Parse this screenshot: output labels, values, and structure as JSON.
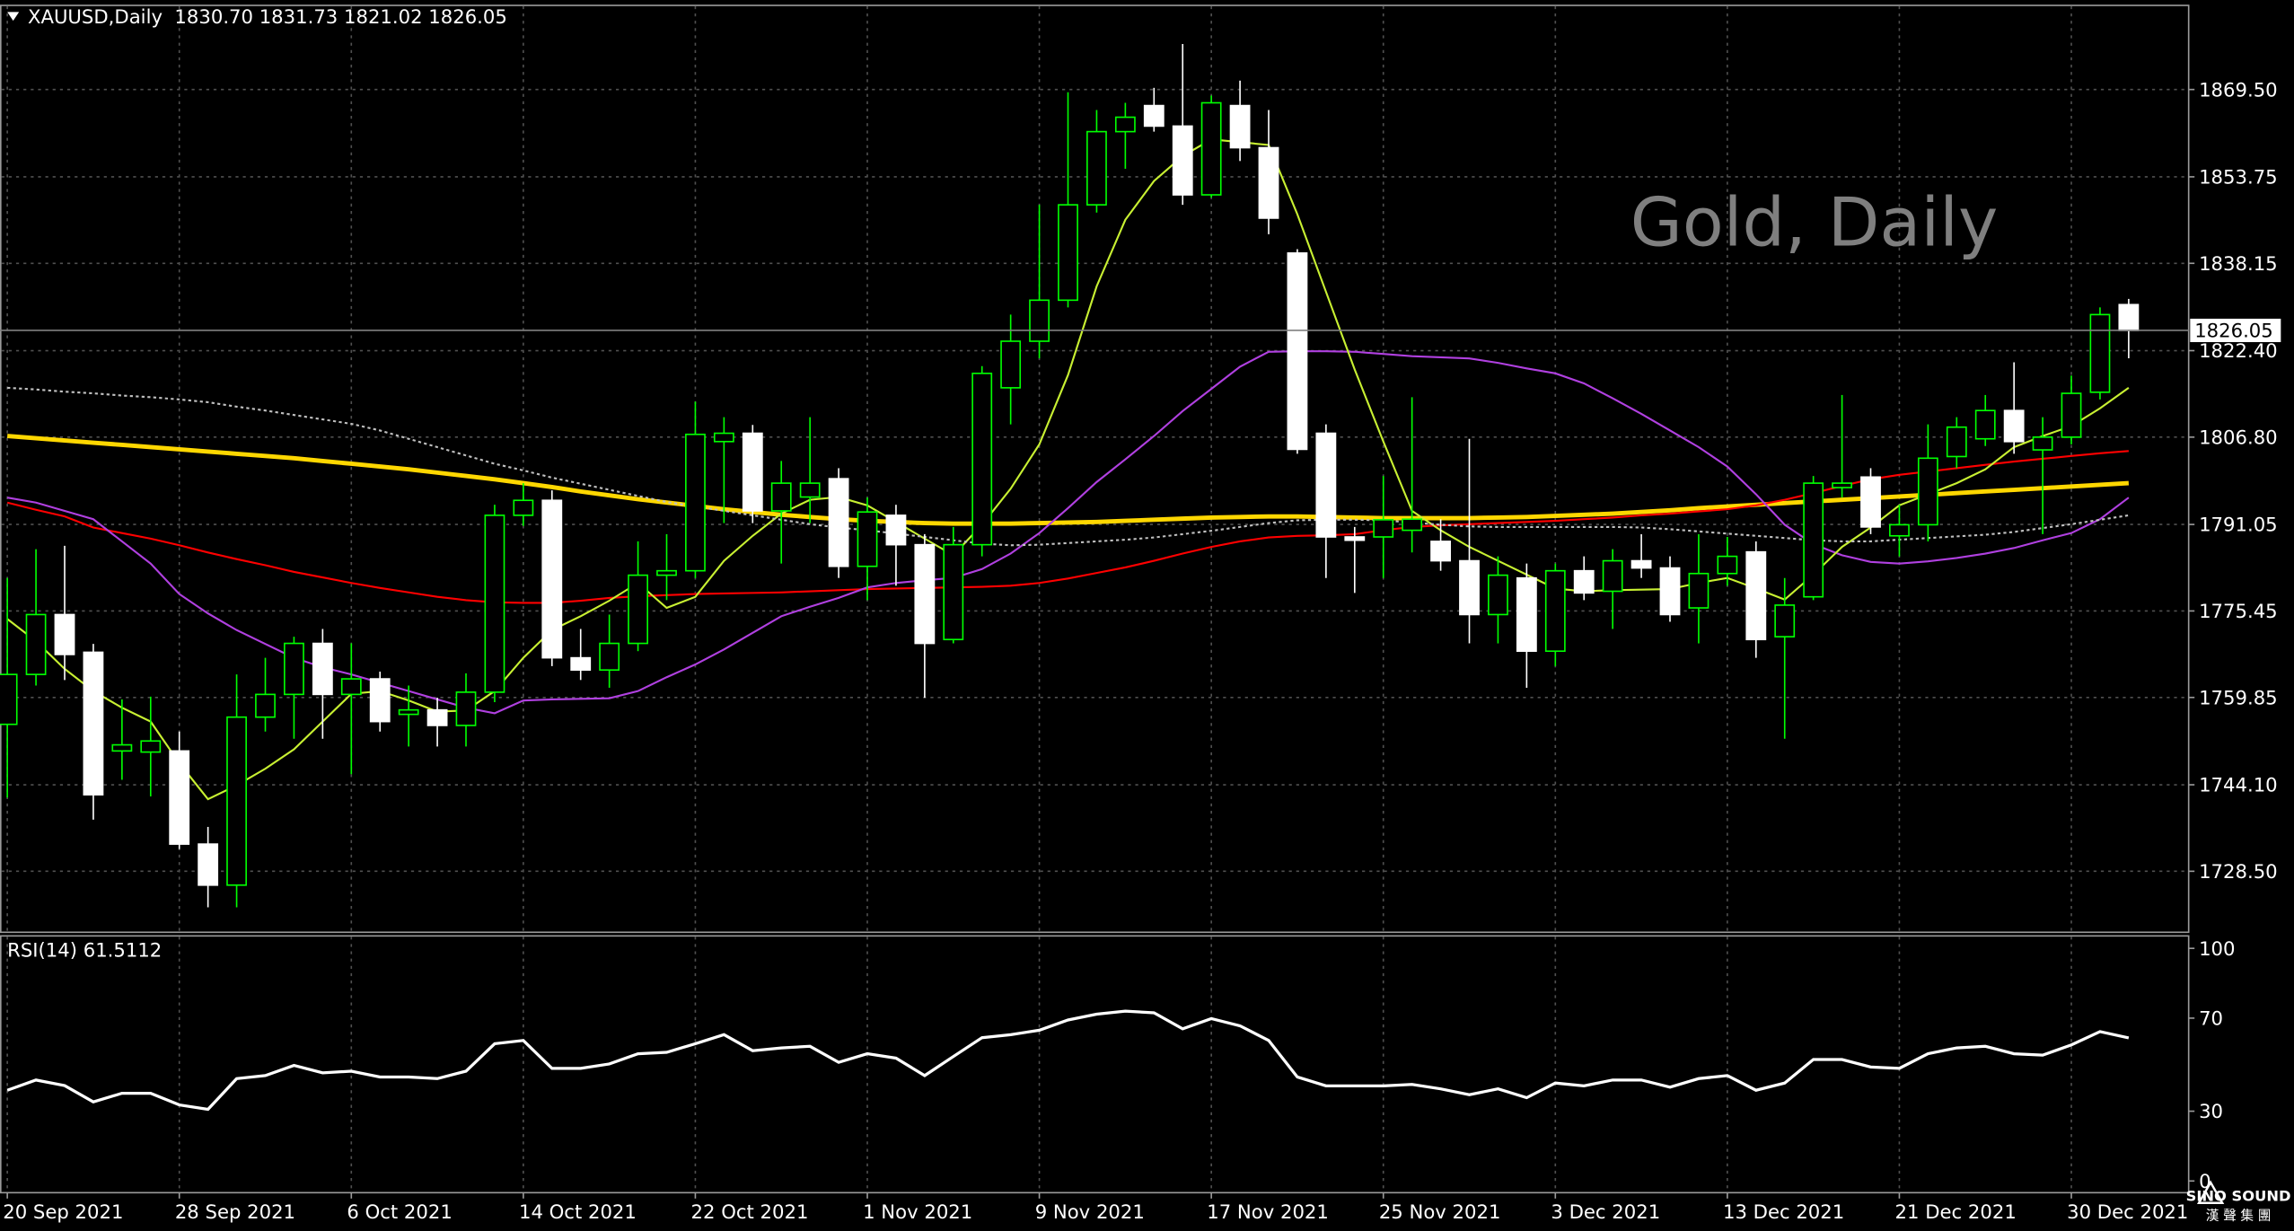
{
  "header": "XAUUSD,Daily  1830.70 1831.73 1821.02 1826.05",
  "watermark": "Gold, Daily",
  "logo": {
    "title": "SINO SOUND",
    "subtitle": "漢 聲 集 團"
  },
  "chart_data": [
    {
      "type": "candlestick",
      "categories": [
        "20 Sep 2021",
        null,
        null,
        null,
        null,
        null,
        "28 Sep 2021",
        null,
        null,
        null,
        null,
        null,
        "6 Oct 2021",
        null,
        null,
        null,
        null,
        null,
        "14 Oct 2021",
        null,
        null,
        null,
        null,
        null,
        "22 Oct 2021",
        null,
        null,
        null,
        null,
        null,
        "1 Nov 2021",
        null,
        null,
        null,
        null,
        null,
        "9 Nov 2021",
        null,
        null,
        null,
        null,
        null,
        "17 Nov 2021",
        null,
        null,
        null,
        null,
        null,
        "25 Nov 2021",
        null,
        null,
        null,
        null,
        null,
        "3 Dec 2021",
        null,
        null,
        null,
        null,
        null,
        "13 Dec 2021",
        null,
        null,
        null,
        null,
        null,
        "21 Dec 2021",
        null,
        null,
        null,
        null,
        null,
        "30 Dec 2021",
        null,
        null
      ],
      "open": [
        1755,
        1764,
        1774.8,
        1768,
        1750.2,
        1750,
        1750.2,
        1733.4,
        1726,
        1756.3,
        1760.4,
        1769.6,
        1760.4,
        1763.2,
        1756.8,
        1757.6,
        1754.8,
        1760.8,
        1792.7,
        1795.4,
        1767,
        1764.8,
        1769.6,
        1781.9,
        1782.7,
        1806,
        1807.5,
        1793.5,
        1796,
        1799.3,
        1783.5,
        1792.7,
        1787.4,
        1770.3,
        1787.4,
        1815.7,
        1824.1,
        1831.5,
        1848.7,
        1861.9,
        1866.6,
        1862.9,
        1850.5,
        1866.6,
        1859,
        1840,
        1807.5,
        1788.8,
        1788.8,
        1790,
        1788,
        1784.5,
        1774.8,
        1781.4,
        1768.2,
        1782.7,
        1779,
        1784.5,
        1783.2,
        1776,
        1782.2,
        1786.1,
        1770.8,
        1778,
        1797.7,
        1799.6,
        1789,
        1791,
        1803.3,
        1806.5,
        1811.6,
        1804.5,
        1806.8,
        1814.9,
        1830.7
      ],
      "high": [
        1781.4,
        1786.6,
        1787.2,
        1769.5,
        1759.5,
        1760,
        1753.7,
        1736.5,
        1764,
        1767,
        1770.8,
        1772.2,
        1769.6,
        1764.5,
        1762,
        1759.8,
        1764.2,
        1794.6,
        1798.5,
        1797.2,
        1772.2,
        1774.8,
        1788,
        1789.3,
        1813.2,
        1810.4,
        1809,
        1802.5,
        1810.4,
        1801.2,
        1795.9,
        1794.6,
        1789.3,
        1790.6,
        1819.6,
        1828.9,
        1848.7,
        1869,
        1865.8,
        1867.1,
        1869.8,
        1877.7,
        1868.4,
        1871.1,
        1865.8,
        1840.7,
        1809.1,
        1790.6,
        1799.8,
        1814,
        1792,
        1806.5,
        1785.3,
        1784,
        1784,
        1785.3,
        1786.6,
        1789.3,
        1785.3,
        1789.3,
        1788.8,
        1788,
        1781.4,
        1799.8,
        1814.4,
        1801.2,
        1794.6,
        1809.1,
        1810.4,
        1814.4,
        1820.3,
        1810.4,
        1817.9,
        1830.2,
        1831.73
      ],
      "low": [
        1741.8,
        1762,
        1763,
        1737.8,
        1745,
        1742,
        1732.5,
        1722,
        1722,
        1753.7,
        1752.4,
        1752.4,
        1746,
        1753.7,
        1751,
        1751,
        1751,
        1759,
        1790.8,
        1765.5,
        1763,
        1761.6,
        1768.2,
        1777.4,
        1781.4,
        1791.3,
        1791.3,
        1784,
        1791.3,
        1781.4,
        1777.4,
        1780,
        1759.8,
        1769.6,
        1785.3,
        1809.1,
        1821,
        1830.2,
        1847.3,
        1855.2,
        1861.9,
        1848.7,
        1850,
        1856.6,
        1843.4,
        1803.8,
        1781.4,
        1778.7,
        1781.4,
        1786,
        1782.7,
        1769.6,
        1769.6,
        1761.6,
        1765.5,
        1777.4,
        1772.2,
        1781.4,
        1773.5,
        1769.6,
        1780,
        1767,
        1752.4,
        1777.4,
        1795.9,
        1789.3,
        1785.3,
        1788,
        1801.2,
        1805.2,
        1803.8,
        1789.3,
        1805.5,
        1813.6,
        1821.02
      ],
      "close": [
        1764,
        1774.8,
        1767.6,
        1742.3,
        1751.3,
        1752,
        1733.4,
        1726,
        1756.3,
        1760.4,
        1769.6,
        1760.4,
        1763.2,
        1755.5,
        1757.6,
        1754.8,
        1760.8,
        1792.7,
        1795.4,
        1767,
        1764.8,
        1769.6,
        1781.9,
        1782.7,
        1807.3,
        1807.5,
        1793.5,
        1798.5,
        1798.5,
        1783.5,
        1793.3,
        1787.4,
        1769.6,
        1787.4,
        1818.3,
        1824.1,
        1831.5,
        1848.7,
        1861.9,
        1864.5,
        1862.9,
        1850.5,
        1867.1,
        1859,
        1846.3,
        1804.6,
        1788.8,
        1788.2,
        1791.9,
        1792,
        1784.5,
        1774.8,
        1781.9,
        1768.2,
        1782.7,
        1778.7,
        1784.5,
        1783.2,
        1774.8,
        1782.2,
        1785.3,
        1770.3,
        1776.5,
        1798.5,
        1798.5,
        1790.6,
        1791,
        1803,
        1808.6,
        1811.6,
        1806,
        1806.8,
        1814.7,
        1828.9,
        1826.05
      ],
      "up_color": "#00ff00",
      "down_color": "#ffffff",
      "series": [
        {
          "color": "#ffd700",
          "values": [
            1807,
            1806.6,
            1806.2,
            1805.8,
            1805.4,
            1805,
            1804.6,
            1804.2,
            1803.8,
            1803.4,
            1803,
            1802.5,
            1802,
            1801.5,
            1801,
            1800.4,
            1799.8,
            1799.2,
            1798.5,
            1797.8,
            1797,
            1796.3,
            1795.6,
            1795,
            1794.4,
            1793.8,
            1793.3,
            1792.8,
            1792.4,
            1792,
            1791.7,
            1791.5,
            1791.3,
            1791.2,
            1791.2,
            1791.2,
            1791.3,
            1791.4,
            1791.5,
            1791.7,
            1791.9,
            1792.1,
            1792.3,
            1792.4,
            1792.5,
            1792.5,
            1792.4,
            1792.3,
            1792.2,
            1792.2,
            1792.2,
            1792.2,
            1792.3,
            1792.4,
            1792.6,
            1792.8,
            1793,
            1793.3,
            1793.6,
            1794,
            1794.3,
            1794.6,
            1794.9,
            1795.2,
            1795.5,
            1795.8,
            1796.1,
            1796.4,
            1796.7,
            1797,
            1797.3,
            1797.6,
            1797.9,
            1798.2,
            1798.5
          ]
        },
        {
          "color": "#ff0000",
          "values": [
            1795,
            1793.7,
            1792.5,
            1790.5,
            1789.5,
            1788.5,
            1787.3,
            1786,
            1784.8,
            1783.7,
            1782.5,
            1781.5,
            1780.5,
            1779.6,
            1778.8,
            1778,
            1777.4,
            1777,
            1776.9,
            1776.9,
            1777.3,
            1777.8,
            1778.1,
            1778.3,
            1778.5,
            1778.6,
            1778.7,
            1778.8,
            1779,
            1779.2,
            1779.4,
            1779.5,
            1779.6,
            1779.7,
            1779.8,
            1780,
            1780.5,
            1781.3,
            1782.3,
            1783.3,
            1784.5,
            1785.8,
            1787,
            1788,
            1788.7,
            1789,
            1789.1,
            1789.3,
            1790,
            1790.6,
            1790.9,
            1791.1,
            1791.3,
            1791.5,
            1791.7,
            1792,
            1792.3,
            1792.7,
            1793,
            1793.4,
            1793.8,
            1794.5,
            1795.5,
            1796.7,
            1798,
            1799.2,
            1800,
            1800.6,
            1801.2,
            1801.8,
            1802.4,
            1802.9,
            1803.4,
            1803.9,
            1804.3
          ]
        },
        {
          "color": "#b040e0",
          "values": [
            1795.9,
            1795,
            1793.5,
            1792,
            1788,
            1784,
            1778.5,
            1775,
            1772,
            1769.5,
            1767,
            1765.3,
            1764,
            1762.5,
            1761,
            1759.5,
            1758,
            1757,
            1759.3,
            1759.5,
            1759.6,
            1759.7,
            1761,
            1763.5,
            1765.8,
            1768.5,
            1771.5,
            1774.5,
            1776.2,
            1777.8,
            1779.7,
            1780.5,
            1781,
            1781.4,
            1783,
            1785.8,
            1789.5,
            1794,
            1798.7,
            1802.8,
            1807,
            1811.5,
            1815.5,
            1819.5,
            1822.2,
            1822.3,
            1822.3,
            1822.2,
            1821.8,
            1821.4,
            1821.2,
            1821,
            1820.2,
            1819.2,
            1818.3,
            1816.5,
            1813.8,
            1811,
            1808,
            1805,
            1801.5,
            1796.5,
            1791,
            1787.5,
            1785.5,
            1784.3,
            1784,
            1784.4,
            1785,
            1785.8,
            1786.8,
            1788.2,
            1789.5,
            1792,
            1795.9
          ]
        },
        {
          "color": "#c8f032",
          "values": [
            1774,
            1770,
            1765,
            1761,
            1758,
            1755.5,
            1748,
            1741.5,
            1744,
            1747,
            1750.5,
            1755.5,
            1760.5,
            1761,
            1759.3,
            1757.3,
            1757.5,
            1761,
            1767,
            1772,
            1774.5,
            1777.3,
            1780.5,
            1776,
            1778,
            1784.5,
            1789,
            1793,
            1795.5,
            1796,
            1794.5,
            1791.5,
            1788.5,
            1785.5,
            1791,
            1797.5,
            1805.5,
            1818,
            1834,
            1846,
            1853,
            1857.5,
            1860.5,
            1860,
            1859.5,
            1847,
            1833,
            1819,
            1806,
            1793.5,
            1790,
            1787,
            1784.5,
            1782,
            1779.5,
            1779,
            1779.2,
            1779.3,
            1779.4,
            1780.5,
            1781.4,
            1779.5,
            1777.5,
            1782,
            1787,
            1790.5,
            1794.5,
            1796.5,
            1798.5,
            1801,
            1805,
            1807,
            1808.8,
            1812,
            1815.7
          ]
        },
        {
          "color": "#c0c0c0",
          "values": [
            1815.7,
            1815.4,
            1815,
            1814.7,
            1814.3,
            1814,
            1813.6,
            1813.1,
            1812.3,
            1811.6,
            1810.8,
            1810,
            1809.2,
            1808,
            1806.5,
            1805,
            1803.5,
            1802,
            1800.8,
            1799.5,
            1798.4,
            1797.3,
            1796.2,
            1795.1,
            1794.3,
            1793.5,
            1792.7,
            1791.9,
            1791.1,
            1790.5,
            1790,
            1789.4,
            1788.8,
            1788.2,
            1787.6,
            1787.3,
            1787.4,
            1787.7,
            1788,
            1788.3,
            1788.7,
            1789.3,
            1789.9,
            1790.6,
            1791.3,
            1791.8,
            1791.9,
            1791.9,
            1791.8,
            1791.4,
            1791,
            1790.7,
            1790.6,
            1790.6,
            1790.6,
            1790.6,
            1790.6,
            1790.5,
            1790.2,
            1789.8,
            1789.4,
            1789,
            1788.6,
            1788.2,
            1788,
            1788,
            1788.3,
            1788.6,
            1788.9,
            1789.2,
            1789.7,
            1790.4,
            1791.1,
            1791.9,
            1792.7
          ]
        }
      ],
      "ylim": [
        1717.5,
        1884.8
      ],
      "yticks": [
        {
          "value": 1869.5,
          "label": "1869.50"
        },
        1853.75,
        1838.15,
        {
          "value": 1822.4,
          "label": "1822.40"
        },
        {
          "value": 1806.8,
          "label": "1806.80"
        },
        1791.05,
        1775.45,
        1759.85,
        {
          "value": 1744.1,
          "label": "1744.10"
        },
        {
          "value": 1728.5,
          "label": "1728.50"
        }
      ],
      "grid": true
    },
    {
      "type": "line",
      "title": "RSI(14) 61.5112",
      "color": "#ffffff",
      "values": [
        39,
        43.4,
        41,
        34,
        37.7,
        37.7,
        32.7,
        30.8,
        44,
        45.3,
        49.7,
        46.5,
        47.2,
        44.7,
        44.7,
        44,
        47.2,
        59,
        60.4,
        48.4,
        48.4,
        50.3,
        54.7,
        55.3,
        59,
        62.9,
        56,
        57.2,
        57.9,
        51,
        54.7,
        52.8,
        45.3,
        53.5,
        61.6,
        62.9,
        64.8,
        69.2,
        71.7,
        73,
        72.3,
        65.4,
        69.8,
        66.7,
        60.4,
        44.7,
        40.9,
        40.9,
        40.9,
        41.5,
        39.6,
        37.1,
        39.6,
        35.8,
        42.1,
        40.9,
        43.4,
        43.4,
        40.3,
        44,
        45.3,
        39,
        42.1,
        52.2,
        52.2,
        49,
        48.4,
        54.7,
        57.2,
        57.9,
        54.7,
        54.1,
        58.5,
        64.2,
        61.5112
      ],
      "ylim": [
        0,
        100
      ],
      "yticks": [
        0,
        30,
        70,
        100
      ],
      "grid": false
    }
  ]
}
